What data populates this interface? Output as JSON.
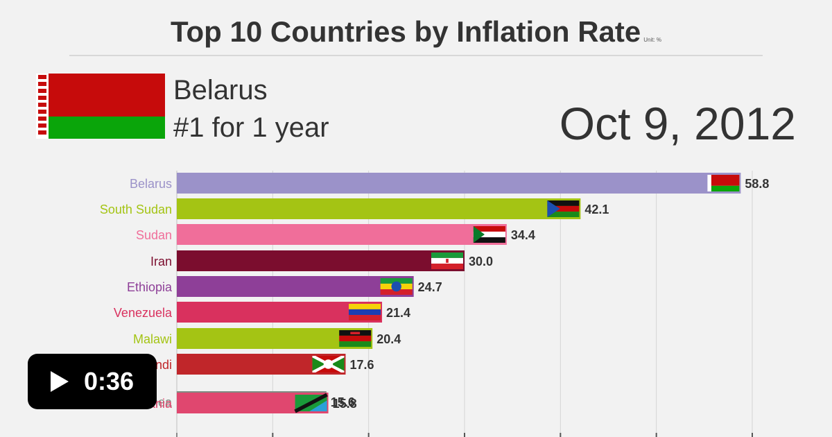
{
  "header": {
    "title": "Top 10 Countries by Inflation Rate",
    "unit": "Unit: %"
  },
  "leader": {
    "name": "Belarus",
    "streak": "#1 for 1 year",
    "flag": "flag-belarus"
  },
  "date": "Oct 9, 2012",
  "video": {
    "duration": "0:36",
    "icon": "play-icon"
  },
  "chart_data": {
    "type": "bar",
    "orientation": "horizontal",
    "title": "Top 10 Countries by Inflation Rate",
    "unit": "%",
    "categories": [
      "Belarus",
      "South Sudan",
      "Sudan",
      "Iran",
      "Ethiopia",
      "Venezuela",
      "Malawi",
      "Burundi",
      "Guinea",
      "Tanzania"
    ],
    "values": [
      58.8,
      42.1,
      34.4,
      30.0,
      24.7,
      21.4,
      20.4,
      17.6,
      15.6,
      15.8
    ],
    "value_labels": [
      "58.8",
      "42.1",
      "34.4",
      "30.0",
      "24.7",
      "21.4",
      "20.4",
      "17.6",
      "15.6",
      "15.8"
    ],
    "colors": [
      "#9b92c9",
      "#a4c414",
      "#f06e9a",
      "#7b0d2e",
      "#8e3f98",
      "#d9315e",
      "#a4c414",
      "#c0262a",
      "#7f8c82",
      "#e0476f"
    ],
    "label_colors": [
      "#9b92c9",
      "#a4c414",
      "#f06e9a",
      "#7b0d2e",
      "#8e3f98",
      "#d9315e",
      "#a4c414",
      "#c0262a",
      "#7f8c82",
      "#e0476f"
    ],
    "flags": [
      "flag-belarus",
      "flag-south-sudan",
      "flag-sudan",
      "flag-iran",
      "flag-ethiopia",
      "flag-venezuela",
      "flag-malawi",
      "flag-burundi",
      "flag-guinea",
      "flag-tanzania"
    ],
    "xlim": [
      0,
      60
    ],
    "xticks": [
      0,
      10,
      20,
      30,
      40,
      50,
      60
    ],
    "grid": true
  }
}
